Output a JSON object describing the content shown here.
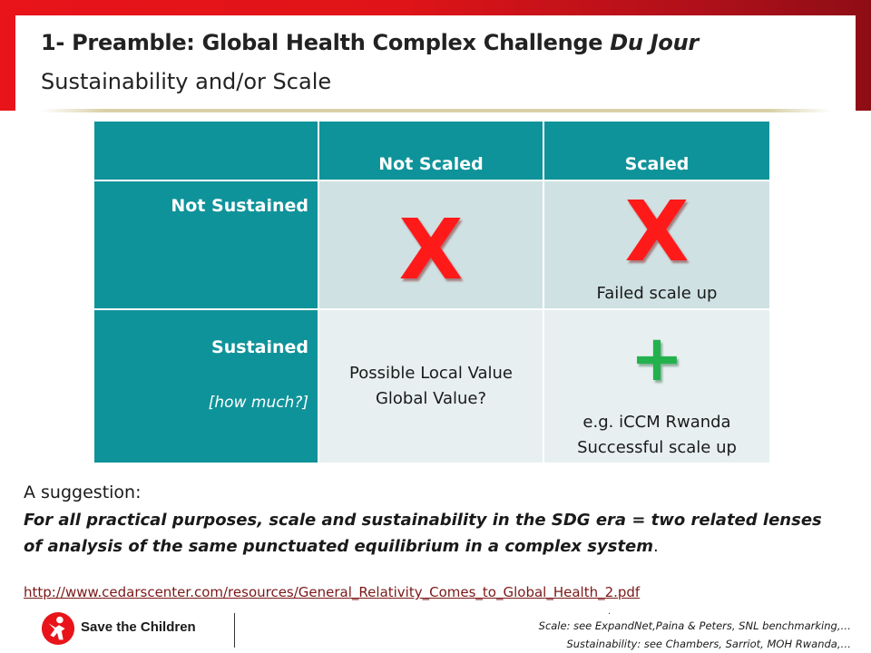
{
  "slide": {
    "title_main": "1- Preamble: Global Health Complex Challenge",
    "title_italic": "Du Jour",
    "subtitle": "Sustainability and/or Scale"
  },
  "matrix": {
    "col_headers": [
      "",
      "Not Scaled",
      "Scaled"
    ],
    "rows": [
      {
        "label": "Not Sustained",
        "note": "",
        "cells": [
          {
            "mark": "X",
            "text": ""
          },
          {
            "mark": "X",
            "text": "Failed scale up"
          }
        ]
      },
      {
        "label": "Sustained",
        "note": "[how much?]",
        "cells": [
          {
            "mark": "",
            "text_lines": [
              "Possible Local Value",
              "Global Value?"
            ]
          },
          {
            "mark": "+",
            "text_lines": [
              "e.g. iCCM Rwanda",
              "Successful scale up"
            ]
          }
        ]
      }
    ]
  },
  "suggestion": {
    "intro": "A suggestion:",
    "body_emphasis": "For all practical purposes,  scale and sustainability in the SDG era = two related lenses of analysis of the same punctuated equilibrium in a complex system",
    "body_end": ".",
    "link": "http://www.cedarscenter.com/resources/General_Relativity_Comes_to_Global_Health_2.pdf"
  },
  "footer": {
    "logo_text": "Save the Children",
    "ref_scale": "Scale: see ExpandNet,Paina & Peters, SNL benchmarking,…",
    "ref_sustainability": "Sustainability: see Chambers, Sarriot, MOH Rwanda,…",
    "dot": "."
  },
  "colors": {
    "brand_red": "#e8141a",
    "teal": "#0f939a",
    "cell_dark": "#cfe1e3",
    "cell_light": "#e7eff0",
    "x_red": "#ff1a1a",
    "plus_green": "#23b14d",
    "link": "#7a1818"
  }
}
